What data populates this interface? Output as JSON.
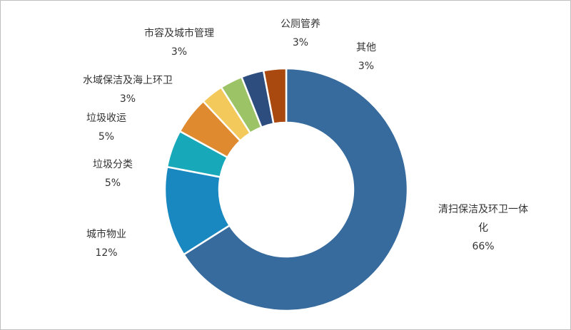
{
  "chart_data": {
    "type": "pie",
    "variant": "donut",
    "title": "",
    "legend": "none",
    "slices": [
      {
        "label": "清扫保洁及环卫一体化",
        "label_lines": [
          "清扫保洁及环卫一体",
          "化"
        ],
        "value": 66,
        "display": "66%",
        "color": "#376b9d"
      },
      {
        "label": "城市物业",
        "label_lines": [
          "城市物业"
        ],
        "value": 12,
        "display": "12%",
        "color": "#1a88c0"
      },
      {
        "label": "垃圾分类",
        "label_lines": [
          "垃圾分类"
        ],
        "value": 5,
        "display": "5%",
        "color": "#17a8b9"
      },
      {
        "label": "垃圾收运",
        "label_lines": [
          "垃圾收运"
        ],
        "value": 5,
        "display": "5%",
        "color": "#df8a2f"
      },
      {
        "label": "水域保洁及海上环卫",
        "label_lines": [
          "水域保洁及海上环卫"
        ],
        "value": 3,
        "display": "3%",
        "color": "#f3c95b"
      },
      {
        "label": "市容及城市管理",
        "label_lines": [
          "市容及城市管理"
        ],
        "value": 3,
        "display": "3%",
        "color": "#9cc466"
      },
      {
        "label": "公厕管养",
        "label_lines": [
          "公厕管养"
        ],
        "value": 3,
        "display": "3%",
        "color": "#2c4d7e"
      },
      {
        "label": "其他",
        "label_lines": [
          "其他"
        ],
        "value": 3,
        "display": "3%",
        "color": "#a9480f"
      }
    ]
  }
}
